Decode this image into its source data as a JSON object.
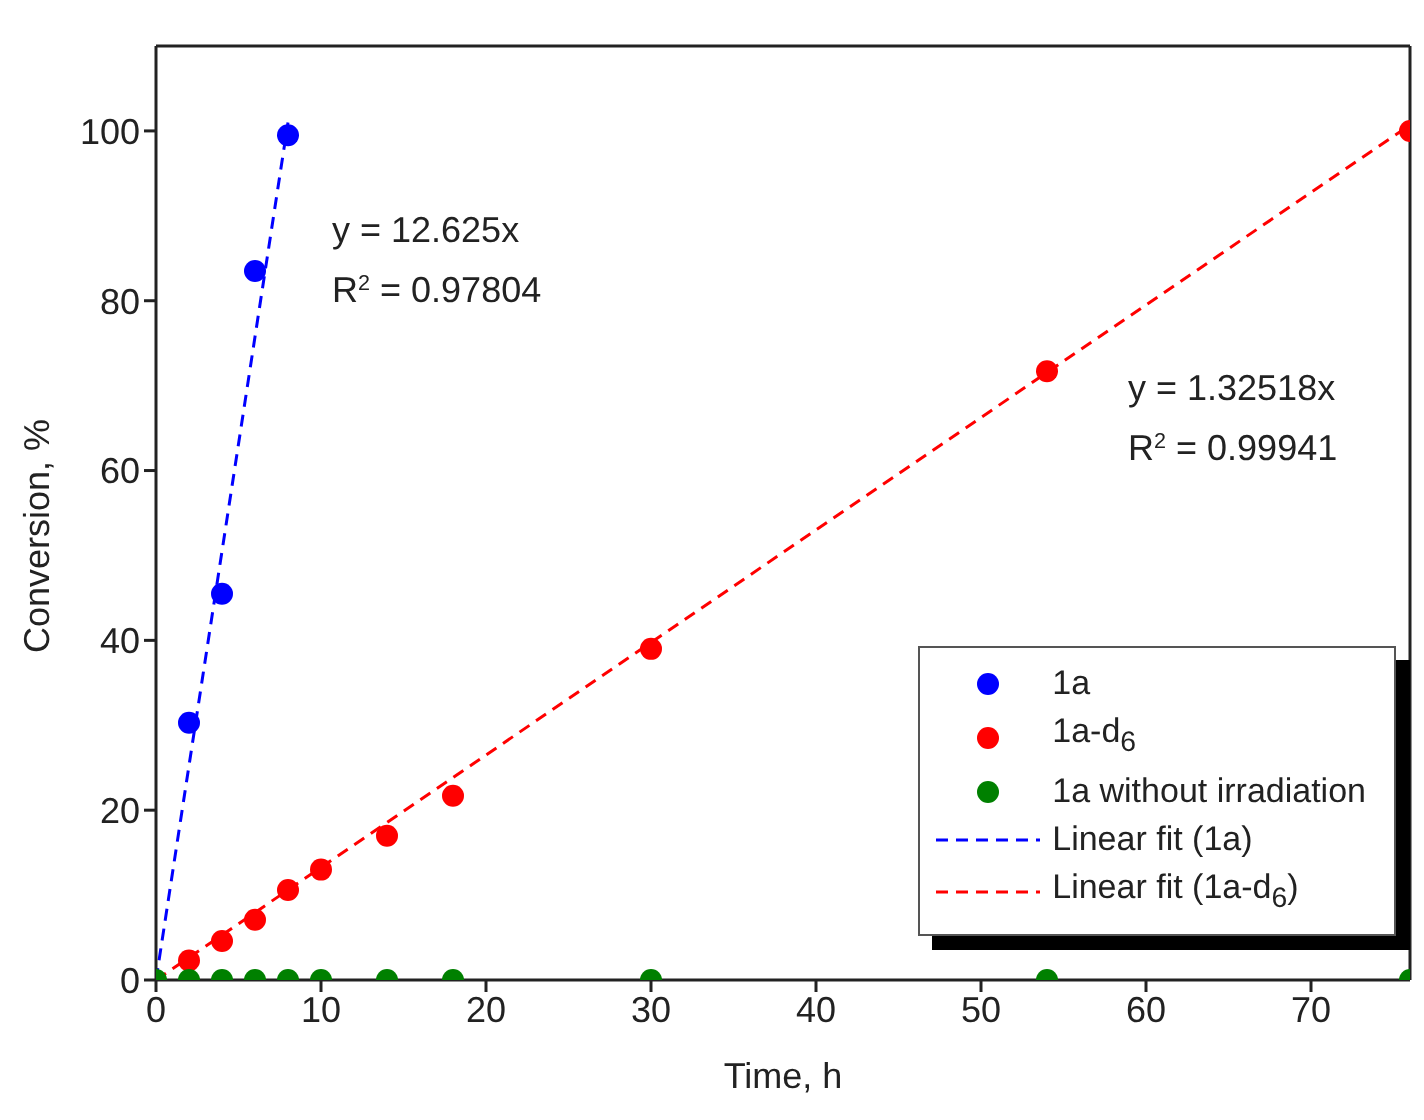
{
  "chart_data": {
    "type": "scatter",
    "xlabel": "Time, h",
    "ylabel": "Conversion, %",
    "xlim": [
      0,
      76
    ],
    "xticks": [
      0,
      10,
      20,
      30,
      40,
      50,
      60,
      70
    ],
    "ylim": [
      0,
      110
    ],
    "yticks": [
      0,
      20,
      40,
      60,
      80,
      100
    ],
    "legend": "bottom right",
    "marker": "circle",
    "series": [
      {
        "name": "1a",
        "color": "#0000ff",
        "x": [
          2,
          4,
          6,
          8
        ],
        "values": [
          30.3,
          45.5,
          83.5,
          99.5
        ]
      },
      {
        "name": "1a-d$_{6}$",
        "color": "#ff0000",
        "x": [
          2,
          4,
          6,
          8,
          10,
          14,
          18,
          30,
          54,
          76
        ],
        "values": [
          2.3,
          4.6,
          7.1,
          10.6,
          13,
          17,
          21.7,
          39,
          71.7,
          100
        ]
      },
      {
        "name": "1a without irradiation",
        "color": "#008000",
        "x": [
          0,
          2,
          4,
          6,
          8,
          10,
          14,
          18,
          30,
          54,
          76
        ],
        "values": [
          0,
          0,
          0,
          0,
          0,
          0,
          0,
          0,
          0,
          0,
          0
        ]
      },
      {
        "name": "Linear fit (1a)",
        "type": "line",
        "line_style": "dashed",
        "marker": "none",
        "color": "#0000ff",
        "x": [
          0,
          8
        ],
        "values": [
          0,
          101
        ]
      },
      {
        "name": "Linear fit (1a-d$_{6}$)",
        "type": "line",
        "line_style": "dashed",
        "marker": "none",
        "color": "#ff0000",
        "x": [
          0,
          76
        ],
        "values": [
          0,
          100.7
        ]
      }
    ],
    "annotations": [
      "y = 12.625x",
      "R$^{2}$ = 0.97804",
      "y = 1.32518x",
      "R$^{2}$ = 0.99941"
    ]
  }
}
